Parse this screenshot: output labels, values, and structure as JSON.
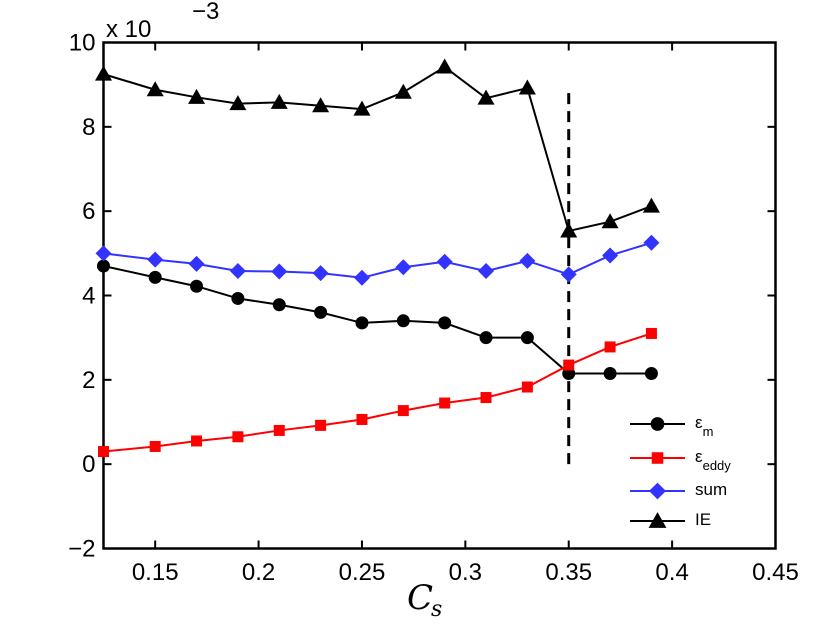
{
  "chart_data": {
    "type": "line",
    "title": "",
    "xlabel": "C",
    "xlabel_sub": "s",
    "ylabel": "",
    "y_multiplier_prefix": "x 10",
    "y_multiplier_exponent": "−3",
    "xlim": [
      0.125,
      0.45
    ],
    "ylim": [
      -2,
      10
    ],
    "xticks": [
      0.15,
      0.2,
      0.25,
      0.3,
      0.35,
      0.4,
      0.45
    ],
    "xtick_labels": [
      "0.15",
      "0.2",
      "0.25",
      "0.3",
      "0.35",
      "0.4",
      "0.45"
    ],
    "yticks": [
      -2,
      0,
      2,
      4,
      6,
      8,
      10
    ],
    "ytick_labels": [
      "−2",
      "0",
      "2",
      "4",
      "6",
      "8",
      "10"
    ],
    "x": [
      0.125,
      0.15,
      0.17,
      0.19,
      0.21,
      0.23,
      0.25,
      0.27,
      0.29,
      0.31,
      0.33,
      0.35,
      0.37,
      0.39
    ],
    "series": [
      {
        "name": "ε_m",
        "label_main": "ε",
        "label_sub": "m",
        "color": "#000000",
        "marker": "circle",
        "values": [
          4.7,
          4.43,
          4.22,
          3.93,
          3.78,
          3.6,
          3.35,
          3.4,
          3.35,
          3.0,
          3.0,
          2.15,
          2.15,
          2.15
        ]
      },
      {
        "name": "ε_eddy",
        "label_main": "ε",
        "label_sub": "eddy",
        "color": "#ff0000",
        "marker": "square",
        "values": [
          0.3,
          0.42,
          0.55,
          0.65,
          0.8,
          0.92,
          1.06,
          1.27,
          1.45,
          1.58,
          1.83,
          2.35,
          2.78,
          3.1
        ]
      },
      {
        "name": "sum",
        "label_main": "sum",
        "label_sub": "",
        "color": "#3333ff",
        "marker": "diamond",
        "values": [
          5.0,
          4.85,
          4.75,
          4.58,
          4.57,
          4.53,
          4.42,
          4.67,
          4.8,
          4.58,
          4.82,
          4.5,
          4.95,
          5.25
        ]
      },
      {
        "name": "IE",
        "label_main": "IE",
        "label_sub": "",
        "color": "#000000",
        "marker": "triangle",
        "values": [
          9.25,
          8.88,
          8.7,
          8.55,
          8.58,
          8.5,
          8.42,
          8.82,
          9.42,
          8.68,
          8.92,
          5.53,
          5.75,
          6.12
        ]
      }
    ],
    "vertical_line": {
      "x": 0.35,
      "y_from": 0,
      "y_to": 8.8,
      "style": "dashed",
      "color": "#000000"
    },
    "legend_position": "bottom-right",
    "grid": false
  }
}
